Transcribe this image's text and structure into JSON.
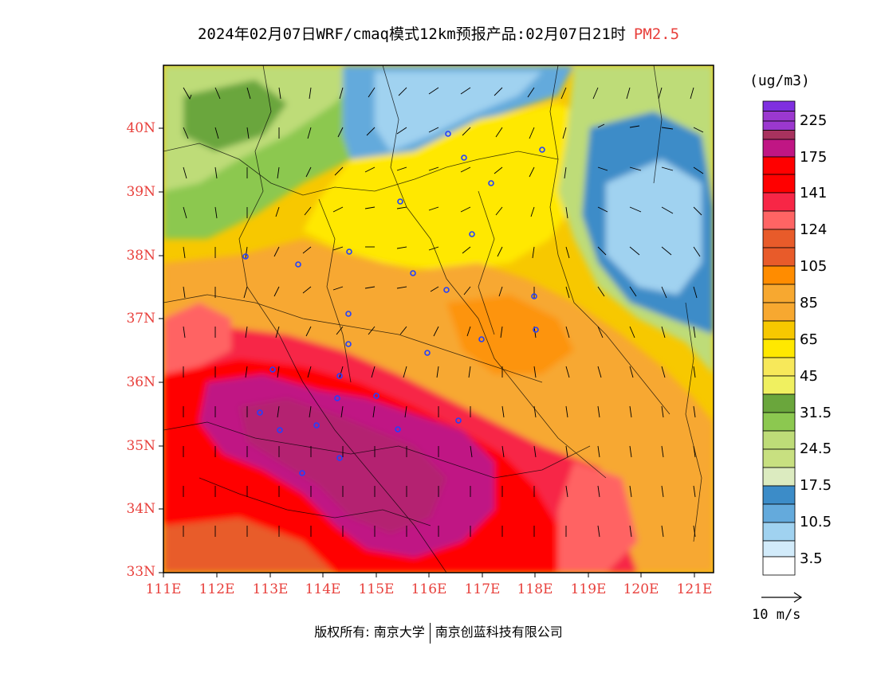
{
  "header": {
    "title": "2024年02月07日WRF/cmaq模式12km预报产品:02月07日21时",
    "species": "PM2.5"
  },
  "map": {
    "lat_labels": [
      "40N",
      "39N",
      "38N",
      "37N",
      "36N",
      "35N",
      "34N",
      "33N"
    ],
    "lon_labels": [
      "111E",
      "112E",
      "113E",
      "114E",
      "115E",
      "116E",
      "117E",
      "118E",
      "119E",
      "120E",
      "121E"
    ]
  },
  "legend": {
    "unit": "(ug/m3)",
    "labels": [
      "225",
      "175",
      "141",
      "124",
      "105",
      "85",
      "65",
      "45",
      "31.5",
      "24.5",
      "17.5",
      "10.5",
      "3.5"
    ],
    "colors": [
      "#7f2fe0",
      "#9b38cf",
      "#a8325e",
      "#c01684",
      "#ff0000",
      "#f72646",
      "#ff6464",
      "#e85b2a",
      "#ff8c00",
      "#f7a830",
      "#f7c800",
      "#ffe800",
      "#faf000",
      "#f0f060",
      "#6aa63c",
      "#8cc850",
      "#bedc78",
      "#d2e68c",
      "#dcebc0",
      "#3c8cc8",
      "#64aadc",
      "#a0d2f0",
      "#d2ebfa",
      "#ffffff"
    ]
  },
  "wind": {
    "reference_label": "10 m/s"
  },
  "footer": {
    "copyright_left": "版权所有: 南京大学",
    "copyright_right": "南京创蓝科技有限公司"
  }
}
